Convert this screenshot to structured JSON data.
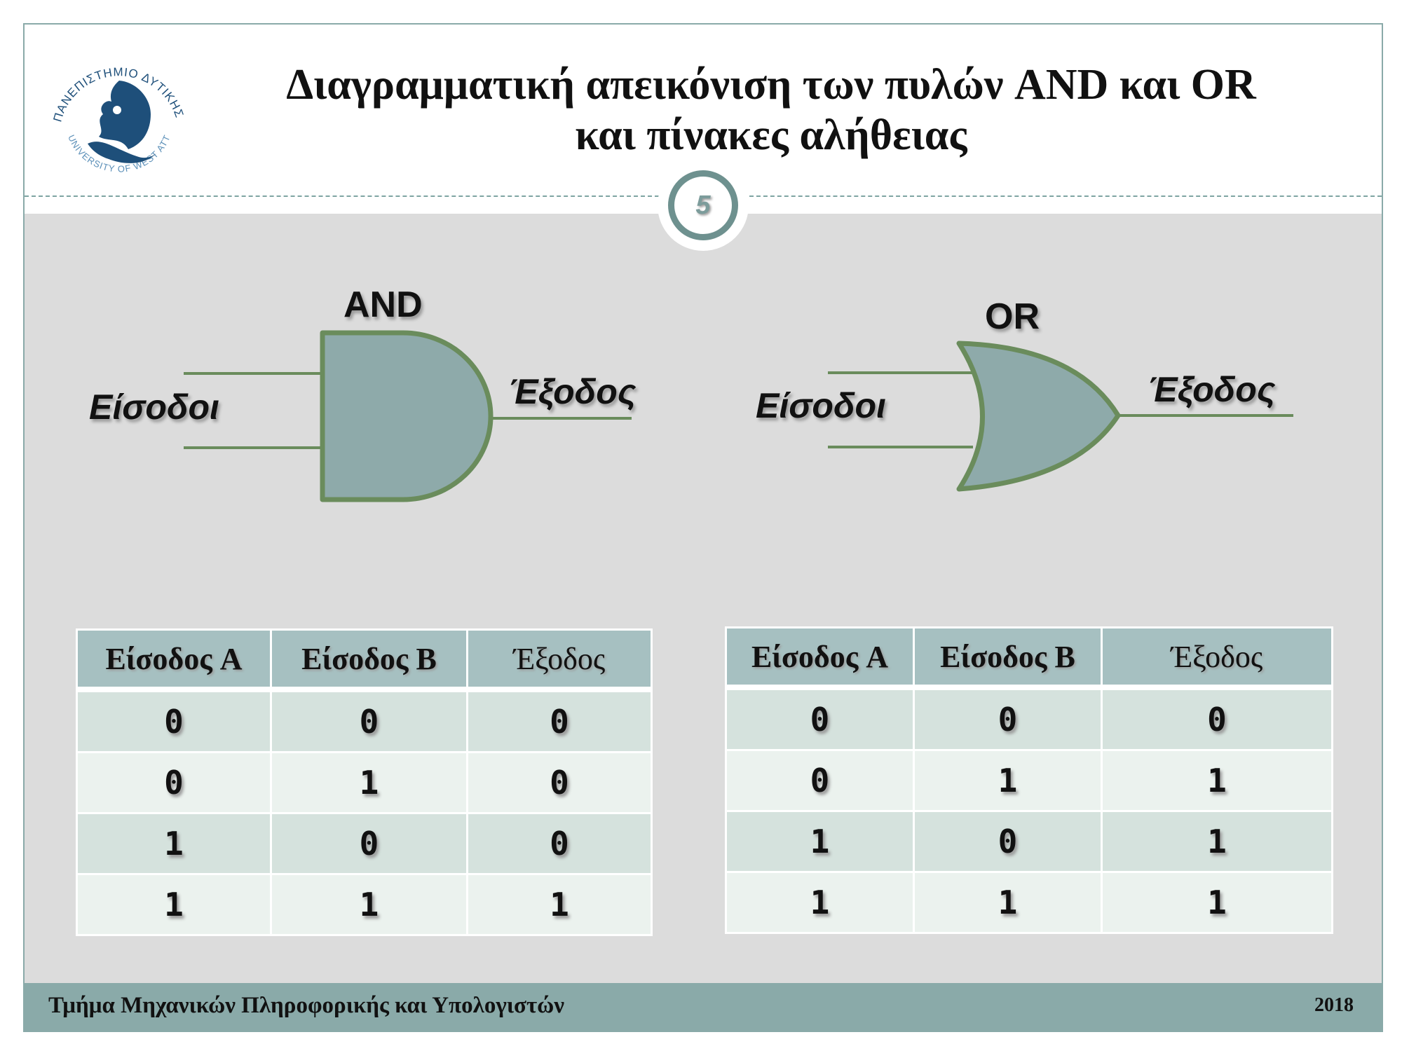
{
  "header": {
    "title_line1": "Διαγραμματική απεικόνιση των πυλών AND και OR",
    "title_line2": "και πίνακες αλήθειας",
    "logo": {
      "icon": "university-logo-icon",
      "text_top": "ΠΑΝΕΠΙΣΤΗΜΙΟ ΔΥΤΙΚΗΣ ΑΤΤΙΚΗΣ",
      "text_bottom": "UNIVERSITY OF WEST ATTICA"
    },
    "page_number": "5"
  },
  "gates": {
    "and": {
      "label": "AND",
      "inputs_label": "Είσοδοι",
      "output_label": "Έξοδος"
    },
    "or": {
      "label": "OR",
      "inputs_label": "Είσοδοι",
      "output_label": "Έξοδος"
    }
  },
  "tables": {
    "and_table": {
      "headers": [
        "Είσοδος A",
        "Είσοδος B",
        "Έξοδος"
      ],
      "rows": [
        [
          "0",
          "0",
          "0"
        ],
        [
          "0",
          "1",
          "0"
        ],
        [
          "1",
          "0",
          "0"
        ],
        [
          "1",
          "1",
          "1"
        ]
      ]
    },
    "or_table": {
      "headers": [
        "Είσοδος A",
        "Είσοδος B",
        "Έξοδος"
      ],
      "rows": [
        [
          "0",
          "0",
          "0"
        ],
        [
          "0",
          "1",
          "1"
        ],
        [
          "1",
          "0",
          "1"
        ],
        [
          "1",
          "1",
          "1"
        ]
      ]
    }
  },
  "footer": {
    "department": "Τμήμα Μηχανικών Πληροφορικής και Υπολογιστών",
    "year": "2018"
  },
  "colors": {
    "gate_fill": "#8eaaaa",
    "gate_stroke": "#6a8c5c",
    "accent": "#8aaaa9",
    "logo_blue": "#1e4f7a"
  }
}
